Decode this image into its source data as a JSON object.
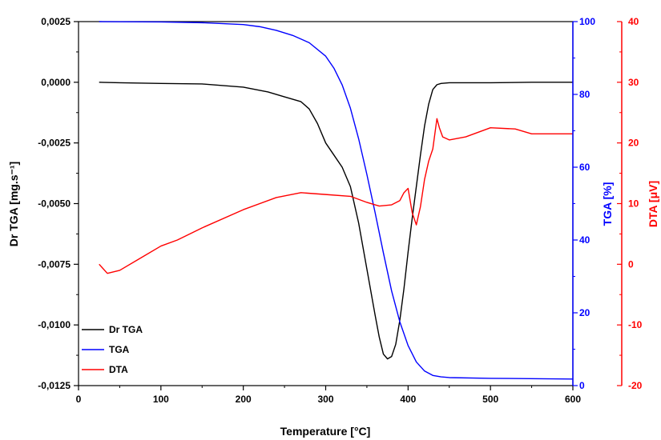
{
  "chart_data": {
    "type": "line",
    "xlabel": "Temperature [°C]",
    "xlim": [
      0,
      600
    ],
    "xticks": [
      "0",
      "100",
      "200",
      "300",
      "400",
      "500",
      "600"
    ],
    "axes": {
      "left": {
        "label": "Dr TGA [mg.s⁻¹]",
        "lim": [
          -0.0125,
          0.0025
        ],
        "ticks": [
          "0,0025",
          "0,0000",
          "-0,0025",
          "-0,0050",
          "-0,0075",
          "-0,0100",
          "-0,0125"
        ],
        "color": "#000000"
      },
      "right1": {
        "label": "TGA [%]",
        "lim": [
          0,
          100
        ],
        "ticks": [
          "100",
          "80",
          "60",
          "40",
          "20",
          "0"
        ],
        "color": "#0000ff"
      },
      "right2": {
        "label": "DTA [μV]",
        "lim": [
          -20,
          40
        ],
        "ticks": [
          "40",
          "30",
          "20",
          "10",
          "0",
          "-10",
          "-20"
        ],
        "color": "#ff0000"
      }
    },
    "grid": false,
    "legend_position": "bottom-left",
    "series": [
      {
        "name": "Dr TGA",
        "axis": "left",
        "color": "#000000",
        "x": [
          25,
          50,
          100,
          150,
          200,
          230,
          250,
          270,
          280,
          290,
          300,
          310,
          320,
          330,
          340,
          350,
          360,
          365,
          370,
          375,
          380,
          385,
          390,
          395,
          400,
          405,
          410,
          415,
          420,
          425,
          430,
          435,
          440,
          450,
          500,
          550,
          600
        ],
        "y": [
          0.0,
          -2e-05,
          -5e-05,
          -7e-05,
          -0.0002,
          -0.0004,
          -0.0006,
          -0.0008,
          -0.0011,
          -0.0017,
          -0.0025,
          -0.003,
          -0.0035,
          -0.0043,
          -0.0058,
          -0.0077,
          -0.0096,
          -0.0105,
          -0.0112,
          -0.0114,
          -0.0113,
          -0.0108,
          -0.0098,
          -0.0085,
          -0.007,
          -0.0056,
          -0.0043,
          -0.003,
          -0.0018,
          -0.0009,
          -0.0003,
          -0.0001,
          -5e-05,
          -2e-05,
          -2e-05,
          0.0,
          0.0
        ]
      },
      {
        "name": "TGA",
        "axis": "right1",
        "color": "#0000ff",
        "x": [
          25,
          100,
          150,
          200,
          220,
          240,
          260,
          280,
          300,
          310,
          320,
          330,
          340,
          350,
          360,
          370,
          380,
          390,
          400,
          410,
          420,
          430,
          440,
          450,
          500,
          600
        ],
        "y": [
          100,
          99.9,
          99.7,
          99.2,
          98.6,
          97.6,
          96.2,
          94.2,
          90.5,
          87.2,
          82.6,
          76.2,
          67.8,
          58,
          47.5,
          36.5,
          26,
          17.5,
          11,
          6.5,
          4,
          2.8,
          2.4,
          2.2,
          2.0,
          1.8
        ]
      },
      {
        "name": "DTA",
        "axis": "right2",
        "color": "#ff0000",
        "x": [
          25,
          35,
          50,
          75,
          100,
          120,
          150,
          200,
          240,
          270,
          300,
          330,
          350,
          365,
          380,
          390,
          395,
          400,
          405,
          410,
          415,
          420,
          425,
          430,
          435,
          438,
          442,
          450,
          470,
          500,
          530,
          550,
          600
        ],
        "y": [
          0.0,
          -1.5,
          -1.0,
          1.0,
          3.0,
          4.0,
          6.0,
          9.0,
          11.0,
          11.8,
          11.5,
          11.2,
          10.2,
          9.6,
          9.8,
          10.5,
          11.8,
          12.5,
          8.5,
          6.5,
          9.5,
          14.0,
          17.0,
          19.0,
          24.0,
          22.5,
          21.0,
          20.5,
          21.0,
          22.5,
          22.3,
          21.5,
          21.5
        ]
      }
    ]
  },
  "legend": {
    "items": [
      {
        "label": "Dr TGA",
        "color": "#000000"
      },
      {
        "label": "TGA",
        "color": "#0000ff"
      },
      {
        "label": "DTA",
        "color": "#ff0000"
      }
    ]
  }
}
